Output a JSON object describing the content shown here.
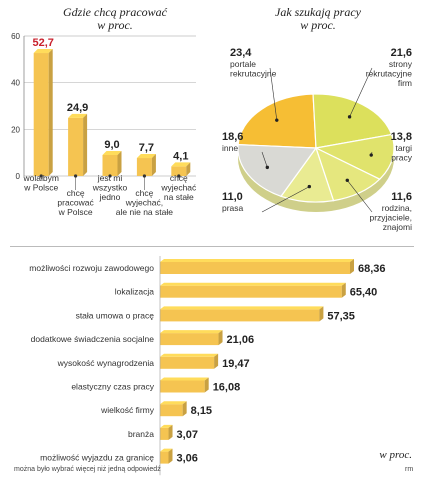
{
  "chart_data": [
    {
      "type": "bar",
      "title": "Gdzie chcą pracować",
      "subtitle": "w proc.",
      "categories": [
        "wolałbym w Polsce",
        "chcę pracować w Polsce",
        "jest mi wszystko jedno",
        "chcę wyjechać, ale nie na stałe",
        "chcę wyjechać na stałe"
      ],
      "values": [
        52.7,
        24.9,
        9.0,
        7.7,
        4.1
      ],
      "value_labels": [
        "52,7",
        "24,9",
        "9,0",
        "7,7",
        "4,1"
      ],
      "highlight_index": 0,
      "ylim": [
        0,
        60
      ],
      "yticks": [
        "0",
        "20",
        "40",
        "60"
      ],
      "grid": true,
      "colors": {
        "bar": "#f5c451",
        "highlight_value": "#c8202c"
      }
    },
    {
      "type": "pie",
      "title": "Jak szukają pracy",
      "subtitle": "w proc.",
      "slices": [
        {
          "label": "portale rekrutacyjne",
          "value": 23.4,
          "value_label": "23,4",
          "color": "#f6be34"
        },
        {
          "label": "strony rekrutacyjne firm",
          "value": 21.6,
          "value_label": "21,6",
          "color": "#dce05c"
        },
        {
          "label": "targi pracy",
          "value": 13.8,
          "value_label": "13,8",
          "color": "#e0e36c"
        },
        {
          "label": "rodzina, przyjaciele, znajomi",
          "value": 11.6,
          "value_label": "11,6",
          "color": "#e5e77e"
        },
        {
          "label": "prasa",
          "value": 11.0,
          "value_label": "11,0",
          "color": "#e9eb92"
        },
        {
          "label": "inne",
          "value": 18.6,
          "value_label": "18,6",
          "color": "#d9d9d4"
        }
      ]
    },
    {
      "type": "bar",
      "orientation": "horizontal",
      "unit_label": "w proc.",
      "categories": [
        "możliwości rozwoju zawodowego",
        "lokalizacja",
        "stała umowa o pracę",
        "dodatkowe świadczenia socjalne",
        "wysokość wynagrodzenia",
        "elastyczny czas pracy",
        "wielkość firmy",
        "branża",
        "możliwość wyjazdu za granicę"
      ],
      "values": [
        68.36,
        65.4,
        57.35,
        21.06,
        19.47,
        16.08,
        8.15,
        3.07,
        3.06
      ],
      "value_labels": [
        "68,36",
        "65,40",
        "57,35",
        "21,06",
        "19,47",
        "16,08",
        "8,15",
        "3,07",
        "3,06"
      ],
      "colors": {
        "bar": "#f5c451"
      }
    }
  ],
  "footnote": "można było wybrać więcej niż jedną odpowiedź",
  "credit": "rm"
}
